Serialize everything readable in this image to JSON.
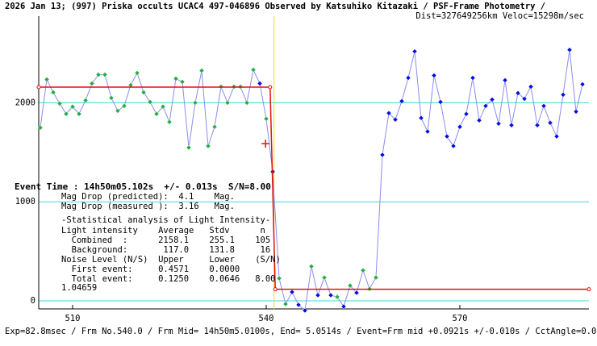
{
  "chart_data": {
    "type": "line",
    "title": "2026 Jan 13; (997) Priska occults UCAC4 497-046896 Observed by Katsuhiko Kitazaki / PSF-Frame Photometry /",
    "subtitle": "Dist=327649256km Veloc=15298m/sec",
    "footer": "Exp=82.8msec / Frm No.540.0 / Frm Mid= 14h50m5.0100s, End= 5.0514s / Event=Frm mid +0.0921s +/-0.010s / CctAngle=0.0deg",
    "event_label": "Event Time : 14h50m05.102s  +/- 0.013s  S/N=8.00",
    "annotations": [
      "Mag Drop (predicted):  4.1    Mag.",
      "Mag Drop (measured ):  3.16   Mag.",
      "-Statistical analysis of Light Intensity-",
      "Light intensity    Average   Stdv      n",
      "  Combined  :      2158.1    255.1    105",
      "  Background:       117.0    131.8     16",
      "Noise Level (N/S)  Upper     Lower    (S/N)",
      "  First event:     0.4571    0.0000",
      "  Total event:     0.1250    0.0646   8.00",
      "1.04659"
    ],
    "xlim": [
      504.75,
      590
    ],
    "xticks": [
      510,
      540,
      570
    ],
    "ylim": [
      -81,
      2858
    ],
    "yticks": [
      0,
      1000,
      2000
    ],
    "grid_color": "#40d8d8",
    "series": [
      {
        "color": "#8c8cf0",
        "x": [
          505,
          506,
          507,
          508,
          509,
          510,
          511,
          512,
          513,
          514,
          515,
          516,
          517,
          518,
          519,
          520,
          521,
          522,
          523,
          524,
          525,
          526,
          527,
          528,
          529,
          530,
          531,
          532,
          533,
          534,
          535,
          536,
          537,
          538,
          539,
          540,
          541,
          542,
          543,
          544,
          545,
          546,
          547,
          548,
          549,
          550,
          551,
          552,
          553,
          554,
          555,
          556,
          557,
          558,
          559,
          560,
          561,
          562,
          563,
          564,
          565,
          566,
          567,
          568,
          569,
          570,
          571,
          572,
          573,
          574,
          575,
          576,
          577,
          578,
          579,
          580,
          581,
          582,
          583,
          584,
          585,
          586,
          587,
          588,
          589
        ],
        "values": [
          1749,
          2235,
          2105,
          1992,
          1887,
          1960,
          1887,
          2024,
          2194,
          2283,
          2283,
          2049,
          1919,
          1968,
          2178,
          2300,
          2105,
          2008,
          1887,
          1960,
          1806,
          2243,
          2211,
          1547,
          2000,
          2324,
          1563,
          1757,
          2162,
          2000,
          2162,
          2162,
          2000,
          2332,
          2194,
          1838,
          1304,
          227,
          -32,
          89,
          -40,
          -97,
          348,
          57,
          235,
          57,
          40,
          -57,
          154,
          81,
          308,
          121,
          235,
          1474,
          1895,
          1830,
          2016,
          2251,
          2518,
          1846,
          1709,
          2275,
          2008,
          1660,
          1563,
          1757,
          1887,
          2251,
          1822,
          1968,
          2032,
          1789,
          2227,
          1773,
          2097,
          2040,
          2162,
          1773,
          1968,
          1798,
          1660,
          2081,
          2534,
          1911,
          2186
        ],
        "markers": "ggggggggggggggggggggggggggggggggggbgbggbbbgbgbgbgbgggbbbbbbbbbbbbbbbbbbbbbbbbbbbbbbbb",
        "marker_palette": {
          "g": "#20b040",
          "b": "#0010e0"
        }
      }
    ],
    "model": {
      "color": "#e01010",
      "x": [
        504.75,
        540.6,
        541.4,
        590
      ],
      "values": [
        2158.1,
        2158.1,
        117,
        117
      ]
    },
    "event_x": 541.2,
    "event_color": "#f0e020",
    "event_marker": {
      "x": 539.9,
      "value": 1587,
      "color": "#e01010"
    }
  }
}
